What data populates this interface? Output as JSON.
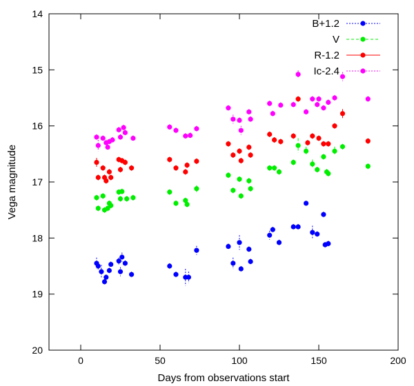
{
  "chart_data": {
    "type": "scatter",
    "xlabel": "Days from observations start",
    "ylabel": "Vega magnitude",
    "xlim": [
      -20,
      200
    ],
    "ylim": [
      14,
      20
    ],
    "y_inverted": true,
    "x_ticks": [
      0,
      50,
      100,
      150,
      200
    ],
    "y_ticks": [
      14,
      15,
      16,
      17,
      18,
      19,
      20
    ],
    "grid": false,
    "legend_position": "top-right",
    "series": [
      {
        "name": "B+1.2",
        "color": "#0000ff",
        "line_style": "dotted",
        "points": [
          [
            10,
            18.45,
            0.1
          ],
          [
            11,
            18.5,
            0.06
          ],
          [
            13,
            18.6,
            0.12
          ],
          [
            15,
            18.78,
            0.05
          ],
          [
            16,
            18.7,
            0.05
          ],
          [
            18,
            18.58,
            0.05
          ],
          [
            19,
            18.47,
            0.05
          ],
          [
            24,
            18.41,
            0.06
          ],
          [
            25,
            18.6,
            0.08
          ],
          [
            26,
            18.34,
            0.08
          ],
          [
            28,
            18.45,
            0.05
          ],
          [
            32,
            18.65,
            0.05
          ],
          [
            56,
            18.5,
            0.05
          ],
          [
            60,
            18.65,
            0.05
          ],
          [
            66,
            18.7,
            0.15
          ],
          [
            68,
            18.7,
            0.1
          ],
          [
            73,
            18.22,
            0.08
          ],
          [
            93,
            18.15,
            0.05
          ],
          [
            96,
            18.45,
            0.1
          ],
          [
            100,
            18.08,
            0.13
          ],
          [
            101,
            18.55,
            0.05
          ],
          [
            106,
            18.2,
            0.05
          ],
          [
            107,
            18.42,
            0.05
          ],
          [
            119,
            17.95,
            0.08
          ],
          [
            121,
            17.85,
            0.05
          ],
          [
            125,
            18.08,
            0.05
          ],
          [
            134,
            17.8,
            0.05
          ],
          [
            137,
            17.8,
            0.05
          ],
          [
            142,
            17.38,
            0.04
          ],
          [
            146,
            17.9,
            0.12
          ],
          [
            149,
            17.93,
            0.05
          ],
          [
            153,
            17.58,
            0.05
          ],
          [
            154,
            18.12,
            0.05
          ],
          [
            156,
            18.1,
            0.05
          ]
        ]
      },
      {
        "name": "V",
        "color": "#00ee00",
        "line_style": "dashed",
        "points": [
          [
            10,
            17.28,
            0.05
          ],
          [
            11,
            17.47,
            0.05
          ],
          [
            14,
            17.25,
            0.05
          ],
          [
            15,
            17.5,
            0.05
          ],
          [
            17,
            17.47,
            0.05
          ],
          [
            18,
            17.38,
            0.05
          ],
          [
            19,
            17.42,
            0.05
          ],
          [
            24,
            17.18,
            0.05
          ],
          [
            25,
            17.3,
            0.05
          ],
          [
            26,
            17.17,
            0.05
          ],
          [
            29,
            17.3,
            0.05
          ],
          [
            33,
            17.28,
            0.05
          ],
          [
            56,
            17.18,
            0.05
          ],
          [
            60,
            17.38,
            0.05
          ],
          [
            66,
            17.33,
            0.05
          ],
          [
            67,
            17.4,
            0.05
          ],
          [
            73,
            17.12,
            0.06
          ],
          [
            93,
            16.88,
            0.05
          ],
          [
            96,
            17.15,
            0.05
          ],
          [
            100,
            16.95,
            0.05
          ],
          [
            101,
            17.25,
            0.05
          ],
          [
            106,
            16.98,
            0.05
          ],
          [
            107,
            17.12,
            0.05
          ],
          [
            119,
            16.75,
            0.05
          ],
          [
            122,
            16.75,
            0.05
          ],
          [
            125,
            16.82,
            0.05
          ],
          [
            134,
            16.65,
            0.05
          ],
          [
            137,
            16.35,
            0.13
          ],
          [
            142,
            16.45,
            0.08
          ],
          [
            146,
            16.68,
            0.08
          ],
          [
            149,
            16.78,
            0.05
          ],
          [
            153,
            16.55,
            0.05
          ],
          [
            155,
            16.82,
            0.05
          ],
          [
            156,
            16.85,
            0.05
          ],
          [
            160,
            16.45,
            0.08
          ],
          [
            165,
            16.37,
            0.05
          ],
          [
            181,
            16.72,
            0.05
          ]
        ]
      },
      {
        "name": "R-1.2",
        "color": "#ff0000",
        "line_style": "solid",
        "points": [
          [
            10,
            16.65,
            0.08
          ],
          [
            11,
            16.92,
            0.05
          ],
          [
            14,
            16.75,
            0.05
          ],
          [
            15,
            16.92,
            0.05
          ],
          [
            16,
            16.98,
            0.05
          ],
          [
            18,
            16.82,
            0.05
          ],
          [
            19,
            16.92,
            0.05
          ],
          [
            24,
            16.6,
            0.05
          ],
          [
            25,
            16.78,
            0.05
          ],
          [
            26,
            16.62,
            0.05
          ],
          [
            28,
            16.65,
            0.05
          ],
          [
            32,
            16.75,
            0.05
          ],
          [
            56,
            16.6,
            0.05
          ],
          [
            60,
            16.75,
            0.05
          ],
          [
            66,
            16.82,
            0.05
          ],
          [
            67,
            16.7,
            0.05
          ],
          [
            73,
            16.63,
            0.05
          ],
          [
            93,
            16.32,
            0.05
          ],
          [
            96,
            16.52,
            0.05
          ],
          [
            100,
            16.45,
            0.05
          ],
          [
            101,
            16.62,
            0.05
          ],
          [
            106,
            16.38,
            0.05
          ],
          [
            107,
            16.52,
            0.05
          ],
          [
            119,
            16.15,
            0.05
          ],
          [
            122,
            16.25,
            0.05
          ],
          [
            126,
            16.28,
            0.05
          ],
          [
            134,
            16.18,
            0.05
          ],
          [
            137,
            15.52,
            0.05
          ],
          [
            143,
            16.3,
            0.05
          ],
          [
            146,
            16.18,
            0.05
          ],
          [
            150,
            16.22,
            0.05
          ],
          [
            153,
            16.32,
            0.05
          ],
          [
            156,
            16.32,
            0.05
          ],
          [
            160,
            16.0,
            0.05
          ],
          [
            165,
            15.78,
            0.08
          ],
          [
            181,
            16.27,
            0.05
          ]
        ]
      },
      {
        "name": "Ic-2.4",
        "color": "#ff00ff",
        "line_style": "dotted",
        "points": [
          [
            10,
            16.2,
            0.05
          ],
          [
            11,
            16.35,
            0.1
          ],
          [
            14,
            16.22,
            0.05
          ],
          [
            16,
            16.3,
            0.05
          ],
          [
            17,
            16.38,
            0.05
          ],
          [
            18,
            16.28,
            0.05
          ],
          [
            20,
            16.25,
            0.05
          ],
          [
            24,
            16.07,
            0.05
          ],
          [
            25,
            16.2,
            0.05
          ],
          [
            27,
            16.03,
            0.05
          ],
          [
            28,
            16.12,
            0.05
          ],
          [
            33,
            16.22,
            0.05
          ],
          [
            56,
            16.02,
            0.05
          ],
          [
            60,
            16.08,
            0.05
          ],
          [
            66,
            16.18,
            0.05
          ],
          [
            69,
            16.17,
            0.05
          ],
          [
            73,
            16.05,
            0.05
          ],
          [
            93,
            15.68,
            0.05
          ],
          [
            96,
            15.88,
            0.08
          ],
          [
            100,
            15.9,
            0.05
          ],
          [
            101,
            16.08,
            0.08
          ],
          [
            106,
            15.75,
            0.05
          ],
          [
            107,
            15.88,
            0.05
          ],
          [
            119,
            15.6,
            0.05
          ],
          [
            121,
            15.78,
            0.05
          ],
          [
            126,
            15.63,
            0.05
          ],
          [
            134,
            15.62,
            0.05
          ],
          [
            137,
            15.08,
            0.07
          ],
          [
            142,
            15.75,
            0.05
          ],
          [
            146,
            15.52,
            0.05
          ],
          [
            149,
            15.62,
            0.05
          ],
          [
            150,
            15.52,
            0.05
          ],
          [
            153,
            15.68,
            0.05
          ],
          [
            156,
            15.58,
            0.05
          ],
          [
            160,
            15.5,
            0.05
          ],
          [
            165,
            15.12,
            0.08
          ],
          [
            181,
            15.52,
            0.05
          ]
        ]
      }
    ]
  }
}
